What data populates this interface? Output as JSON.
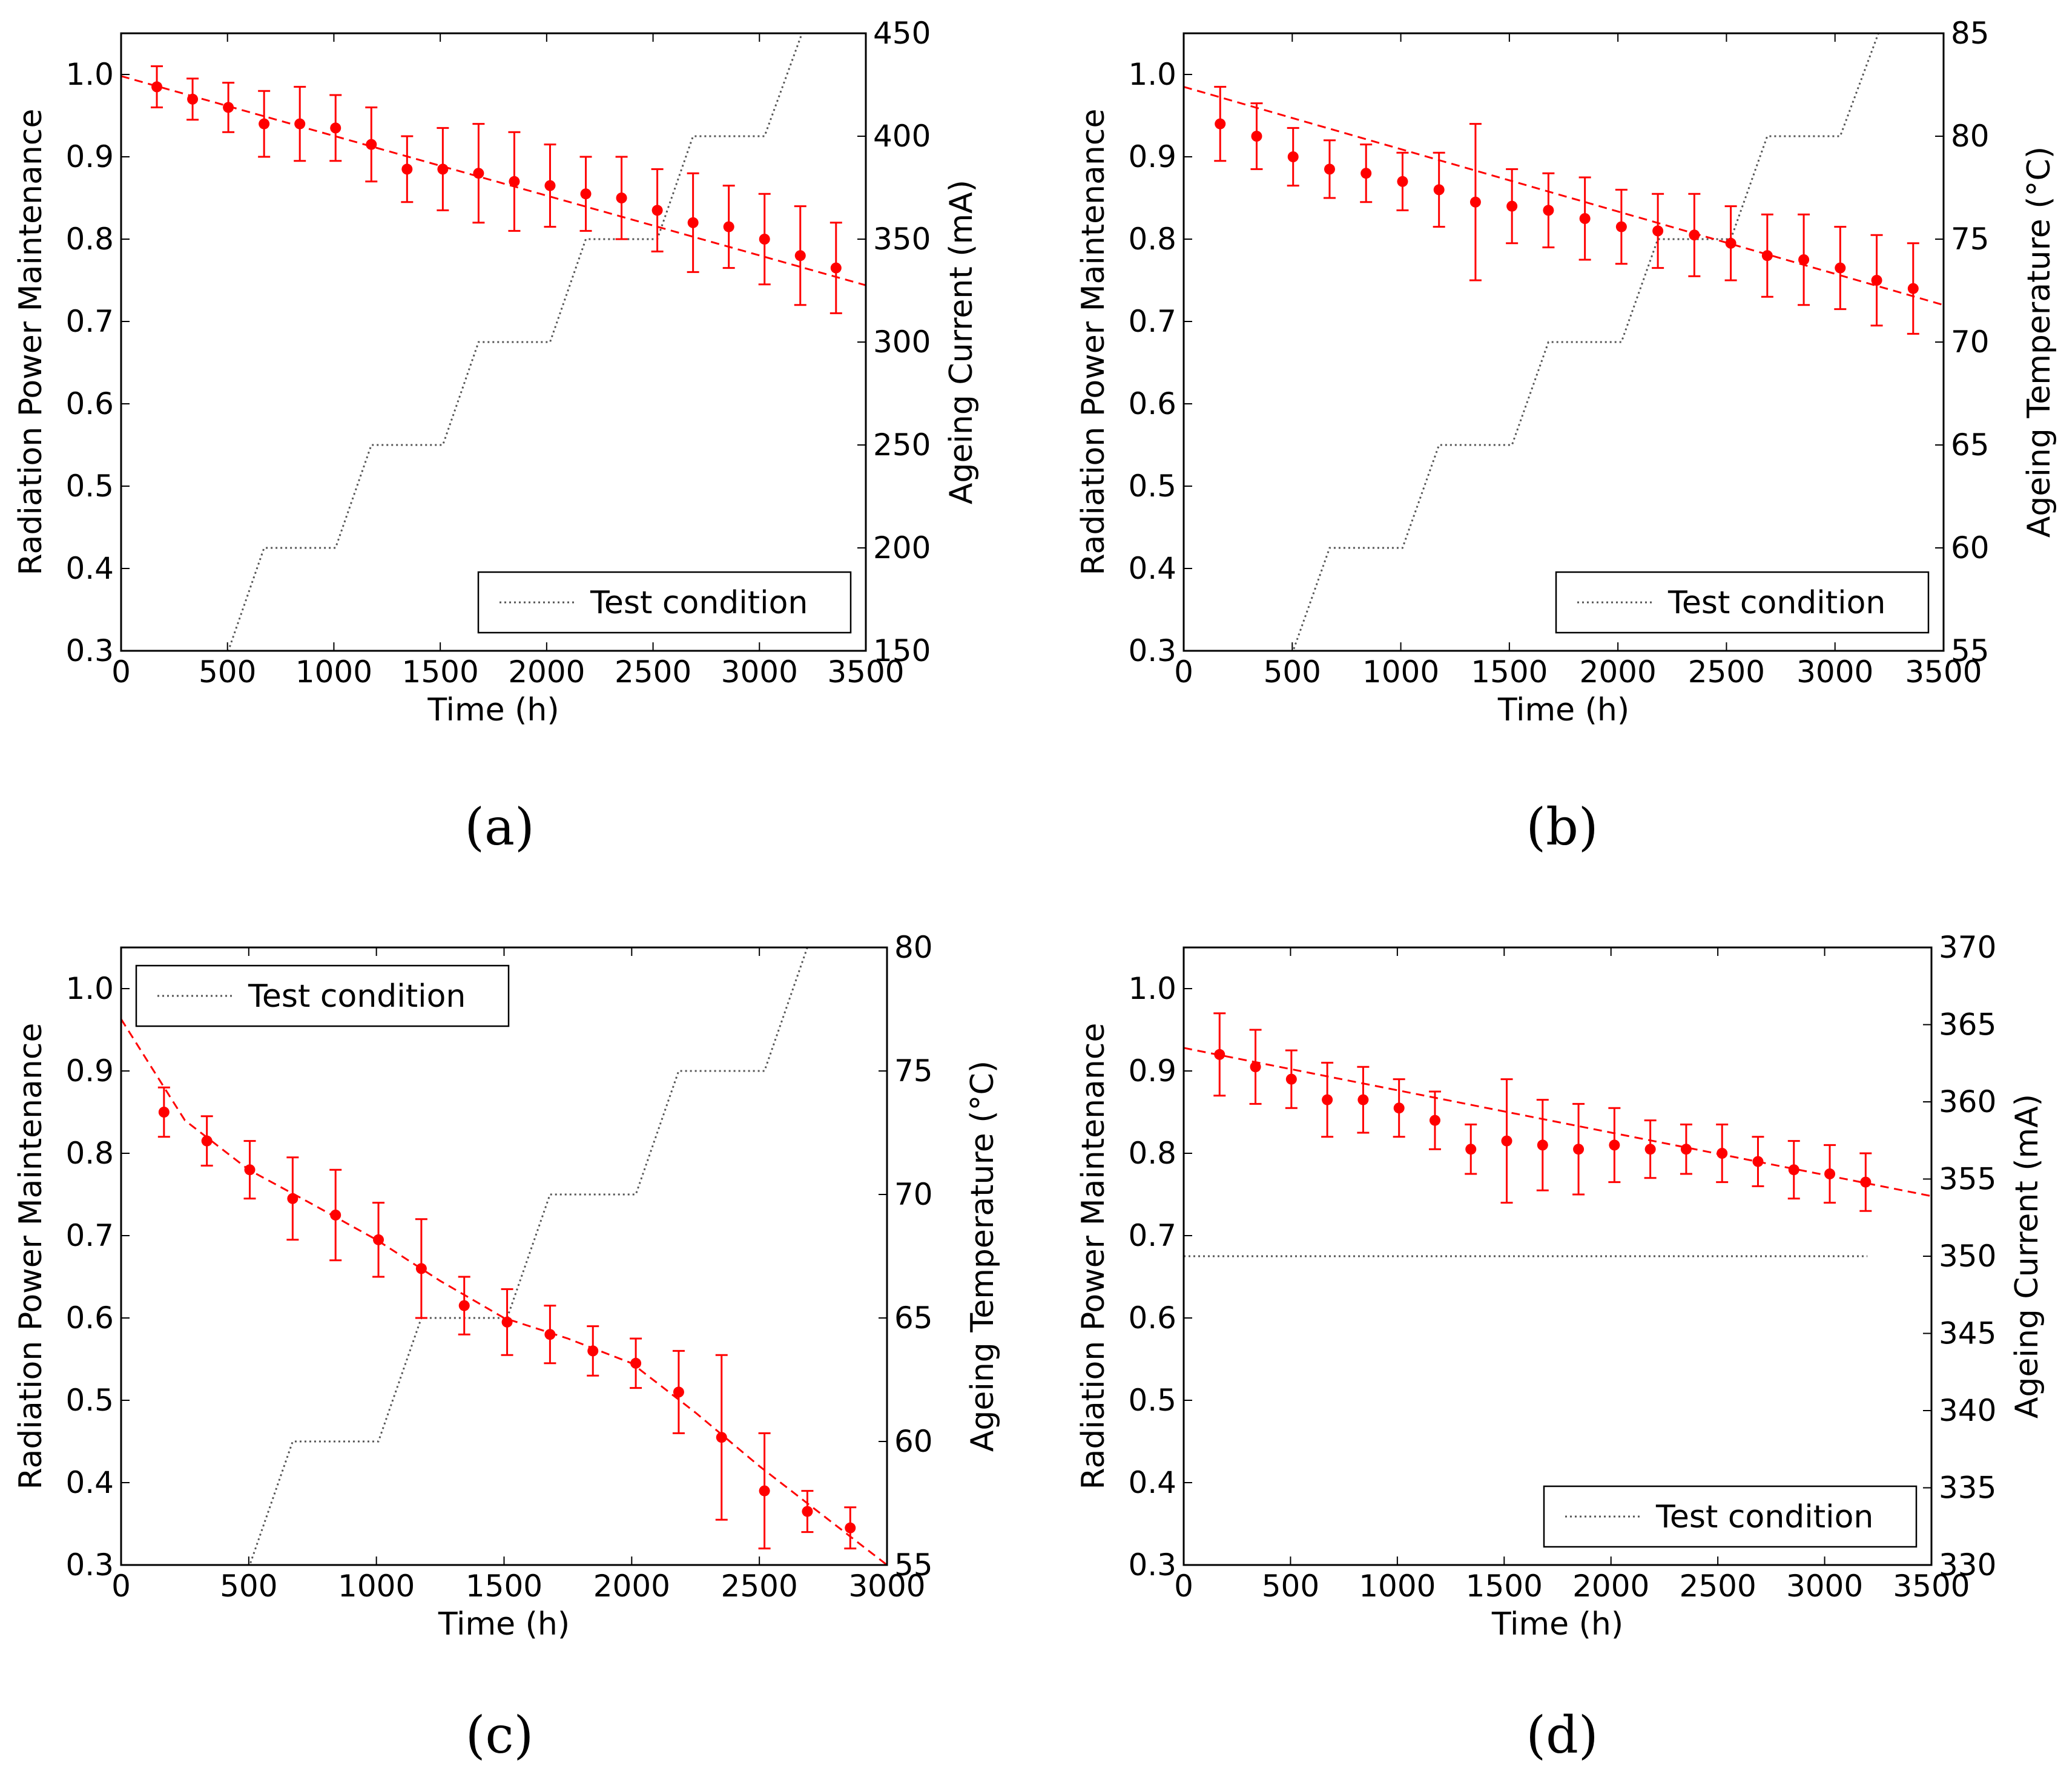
{
  "colors": {
    "data": "#ff0000",
    "condition": "#555555",
    "axes": "#000000"
  },
  "chart_data": [
    {
      "type": "scatter",
      "panel": "a",
      "caption": "(a)",
      "xlabel": "Time (h)",
      "ylabel": "Radiation Power Maintenance",
      "y2label": "Ageing Current (mA)",
      "xlim": [
        0,
        3500
      ],
      "ylim": [
        0.3,
        1.05
      ],
      "y2lim": [
        150,
        450
      ],
      "xticks": [
        0,
        500,
        1000,
        1500,
        2000,
        2500,
        3000,
        3500
      ],
      "xtick_labels": [
        "0",
        "500",
        "1000",
        "1500",
        "2000",
        "2500",
        "3000",
        "3500"
      ],
      "yticks": [
        0.3,
        0.4,
        0.5,
        0.6,
        0.7,
        0.8,
        0.9,
        1.0
      ],
      "ytick_labels": [
        "0.3",
        "0.4",
        "0.5",
        "0.6",
        "0.7",
        "0.8",
        "0.9",
        "1.0"
      ],
      "y2ticks": [
        150,
        200,
        250,
        300,
        350,
        400,
        450
      ],
      "y2tick_labels": [
        "150",
        "200",
        "250",
        "300",
        "350",
        "400",
        "450"
      ],
      "legend": {
        "label": "Test condition",
        "location": "lower-right"
      },
      "series": [
        {
          "name": "Radiation power maintenance",
          "x": [
            168,
            336,
            504,
            672,
            840,
            1008,
            1176,
            1344,
            1512,
            1680,
            1848,
            2016,
            2184,
            2352,
            2520,
            2688,
            2856,
            3024,
            3192,
            3360
          ],
          "y": [
            0.985,
            0.97,
            0.96,
            0.94,
            0.94,
            0.935,
            0.915,
            0.885,
            0.885,
            0.88,
            0.87,
            0.865,
            0.855,
            0.85,
            0.835,
            0.82,
            0.815,
            0.8,
            0.78,
            0.765
          ],
          "err": [
            0.025,
            0.025,
            0.03,
            0.04,
            0.045,
            0.04,
            0.045,
            0.04,
            0.05,
            0.06,
            0.06,
            0.05,
            0.045,
            0.05,
            0.05,
            0.06,
            0.05,
            0.055,
            0.06,
            0.055
          ]
        },
        {
          "name": "Fit",
          "x": [
            0,
            3500
          ],
          "y": [
            0.998,
            0.744
          ]
        },
        {
          "name": "Test condition",
          "axis": "y2",
          "x": [
            0,
            504,
            672,
            1008,
            1176,
            1512,
            1680,
            2016,
            2184,
            2520,
            2688,
            3024,
            3200
          ],
          "y": [
            150,
            150,
            200,
            200,
            250,
            250,
            300,
            300,
            350,
            350,
            400,
            400,
            450
          ]
        }
      ]
    },
    {
      "type": "scatter",
      "panel": "b",
      "caption": "(b)",
      "xlabel": "Time (h)",
      "ylabel": "Radiation Power Maintenance",
      "y2label": "Ageing Temperature (°C)",
      "xlim": [
        0,
        3500
      ],
      "ylim": [
        0.3,
        1.05
      ],
      "y2lim": [
        55,
        85
      ],
      "xticks": [
        0,
        500,
        1000,
        1500,
        2000,
        2500,
        3000,
        3500
      ],
      "xtick_labels": [
        "0",
        "500",
        "1000",
        "1500",
        "2000",
        "2500",
        "3000",
        "3500"
      ],
      "yticks": [
        0.3,
        0.4,
        0.5,
        0.6,
        0.7,
        0.8,
        0.9,
        1.0
      ],
      "ytick_labels": [
        "0.3",
        "0.4",
        "0.5",
        "0.6",
        "0.7",
        "0.8",
        "0.9",
        "1.0"
      ],
      "y2ticks": [
        55,
        60,
        65,
        70,
        75,
        80,
        85
      ],
      "y2tick_labels": [
        "55",
        "60",
        "65",
        "70",
        "75",
        "80",
        "85"
      ],
      "legend": {
        "label": "Test condition",
        "location": "lower-right"
      },
      "series": [
        {
          "name": "Radiation power maintenance",
          "x": [
            168,
            336,
            504,
            672,
            840,
            1008,
            1176,
            1344,
            1512,
            1680,
            1848,
            2016,
            2184,
            2352,
            2520,
            2688,
            2856,
            3024,
            3192,
            3360
          ],
          "y": [
            0.94,
            0.925,
            0.9,
            0.885,
            0.88,
            0.87,
            0.86,
            0.845,
            0.84,
            0.835,
            0.825,
            0.815,
            0.81,
            0.805,
            0.795,
            0.78,
            0.775,
            0.765,
            0.75,
            0.74
          ],
          "err": [
            0.045,
            0.04,
            0.035,
            0.035,
            0.035,
            0.035,
            0.045,
            0.095,
            0.045,
            0.045,
            0.05,
            0.045,
            0.045,
            0.05,
            0.045,
            0.05,
            0.055,
            0.05,
            0.055,
            0.055
          ]
        },
        {
          "name": "Fit",
          "x": [
            0,
            3500
          ],
          "y": [
            0.985,
            0.72
          ]
        },
        {
          "name": "Test condition",
          "axis": "y2",
          "x": [
            0,
            504,
            672,
            1008,
            1176,
            1512,
            1680,
            2016,
            2184,
            2520,
            2688,
            3024,
            3200
          ],
          "y": [
            55,
            55,
            60,
            60,
            65,
            65,
            70,
            70,
            75,
            75,
            80,
            80,
            85
          ]
        }
      ]
    },
    {
      "type": "scatter",
      "panel": "c",
      "caption": "(c)",
      "xlabel": "Time (h)",
      "ylabel": "Radiation Power Maintenance",
      "y2label": "Ageing Temperature (°C)",
      "xlim": [
        0,
        3000
      ],
      "ylim": [
        0.3,
        1.05
      ],
      "y2lim": [
        55,
        80
      ],
      "xticks": [
        0,
        500,
        1000,
        1500,
        2000,
        2500,
        3000
      ],
      "xtick_labels": [
        "0",
        "500",
        "1000",
        "1500",
        "2000",
        "2500",
        "3000"
      ],
      "yticks": [
        0.3,
        0.4,
        0.5,
        0.6,
        0.7,
        0.8,
        0.9,
        1.0
      ],
      "ytick_labels": [
        "0.3",
        "0.4",
        "0.5",
        "0.6",
        "0.7",
        "0.8",
        "0.9",
        "1.0"
      ],
      "y2ticks": [
        55,
        60,
        65,
        70,
        75,
        80
      ],
      "y2tick_labels": [
        "55",
        "60",
        "65",
        "70",
        "75",
        "80"
      ],
      "legend": {
        "label": "Test condition",
        "location": "upper-left"
      },
      "series": [
        {
          "name": "Radiation power maintenance",
          "x": [
            168,
            336,
            504,
            672,
            840,
            1008,
            1176,
            1344,
            1512,
            1680,
            1848,
            2016,
            2184,
            2352,
            2520,
            2688,
            2856
          ],
          "y": [
            0.85,
            0.815,
            0.78,
            0.745,
            0.725,
            0.695,
            0.66,
            0.615,
            0.595,
            0.58,
            0.56,
            0.545,
            0.51,
            0.455,
            0.39,
            0.365,
            0.345
          ],
          "err": [
            0.03,
            0.03,
            0.035,
            0.05,
            0.055,
            0.045,
            0.06,
            0.035,
            0.04,
            0.035,
            0.03,
            0.03,
            0.05,
            0.1,
            0.07,
            0.025,
            0.025
          ]
        },
        {
          "name": "Fit",
          "x": [
            0,
            250,
            500,
            750,
            1000,
            1250,
            1500,
            1750,
            2000,
            2250,
            2500,
            2750,
            3000
          ],
          "y": [
            0.963,
            0.84,
            0.78,
            0.738,
            0.695,
            0.645,
            0.6,
            0.575,
            0.545,
            0.485,
            0.42,
            0.36,
            0.3
          ]
        },
        {
          "name": "Test condition",
          "axis": "y2",
          "x": [
            0,
            504,
            672,
            1008,
            1176,
            1512,
            1680,
            2016,
            2184,
            2520,
            2688,
            3000
          ],
          "y": [
            55,
            55,
            60,
            60,
            65,
            65,
            70,
            70,
            75,
            75,
            80,
            80
          ]
        }
      ]
    },
    {
      "type": "scatter",
      "panel": "d",
      "caption": "(d)",
      "xlabel": "Time (h)",
      "ylabel": "Radiation Power Maintenance",
      "y2label": "Ageing Current (mA)",
      "xlim": [
        0,
        3500
      ],
      "ylim": [
        0.3,
        1.05
      ],
      "y2lim": [
        330,
        370
      ],
      "xticks": [
        0,
        500,
        1000,
        1500,
        2000,
        2500,
        3000,
        3500
      ],
      "xtick_labels": [
        "0",
        "500",
        "1000",
        "1500",
        "2000",
        "2500",
        "3000",
        "3500"
      ],
      "yticks": [
        0.3,
        0.4,
        0.5,
        0.6,
        0.7,
        0.8,
        0.9,
        1.0
      ],
      "ytick_labels": [
        "0.3",
        "0.4",
        "0.5",
        "0.6",
        "0.7",
        "0.8",
        "0.9",
        "1.0"
      ],
      "y2ticks": [
        330,
        335,
        340,
        345,
        350,
        355,
        360,
        365,
        370
      ],
      "y2tick_labels": [
        "330",
        "335",
        "340",
        "345",
        "350",
        "355",
        "360",
        "365",
        "370"
      ],
      "legend": {
        "label": "Test condition",
        "location": "lower-right"
      },
      "series": [
        {
          "name": "Radiation power maintenance",
          "x": [
            168,
            336,
            504,
            672,
            840,
            1008,
            1176,
            1344,
            1512,
            1680,
            1848,
            2016,
            2184,
            2352,
            2520,
            2688,
            2856,
            3024,
            3192
          ],
          "y": [
            0.92,
            0.905,
            0.89,
            0.865,
            0.865,
            0.855,
            0.84,
            0.805,
            0.815,
            0.81,
            0.805,
            0.81,
            0.805,
            0.805,
            0.8,
            0.79,
            0.78,
            0.775,
            0.765
          ],
          "err": [
            0.05,
            0.045,
            0.035,
            0.045,
            0.04,
            0.035,
            0.035,
            0.03,
            0.075,
            0.055,
            0.055,
            0.045,
            0.035,
            0.03,
            0.035,
            0.03,
            0.035,
            0.035,
            0.035
          ]
        },
        {
          "name": "Fit",
          "x": [
            0,
            3500
          ],
          "y": [
            0.928,
            0.748
          ]
        },
        {
          "name": "Test condition",
          "axis": "y2",
          "x": [
            0,
            3200
          ],
          "y": [
            350,
            350
          ]
        }
      ]
    }
  ]
}
